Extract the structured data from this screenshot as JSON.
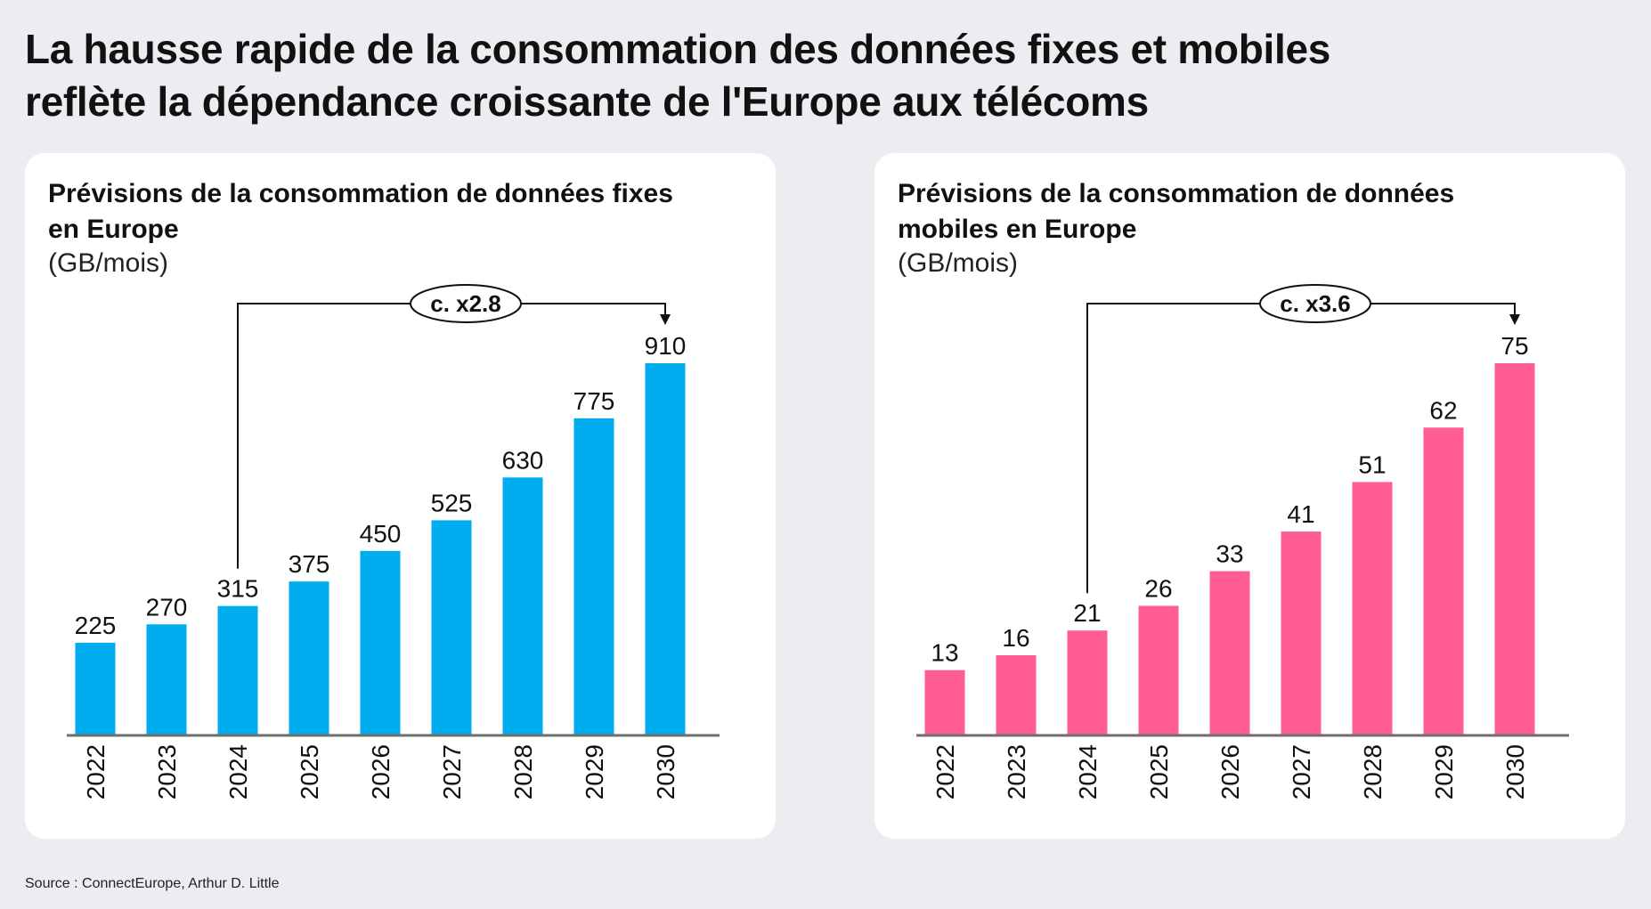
{
  "title": {
    "line1": "La hausse rapide de la consommation des données fixes et mobiles",
    "line2": "reflète la dépendance croissante de l'Europe aux télécoms"
  },
  "source": "Source : ConnectEurope, Arthur D. Little",
  "chart_data": [
    {
      "type": "bar",
      "title_line1": "Prévisions de la consommation de données fixes",
      "title_line2": "en Europe",
      "unit": "(GB/mois)",
      "categories": [
        "2022",
        "2023",
        "2024",
        "2025",
        "2026",
        "2027",
        "2028",
        "2029",
        "2030"
      ],
      "values": [
        225,
        270,
        315,
        375,
        450,
        525,
        630,
        775,
        910
      ],
      "color": "#00aeef",
      "annotation": {
        "text": "c. x2.8",
        "from": "2024",
        "to": "2030"
      },
      "ylim": [
        0,
        910
      ],
      "grid": false
    },
    {
      "type": "bar",
      "title_line1": "Prévisions de la consommation de données",
      "title_line2": "mobiles en Europe",
      "unit": "(GB/mois)",
      "categories": [
        "2022",
        "2023",
        "2024",
        "2025",
        "2026",
        "2027",
        "2028",
        "2029",
        "2030"
      ],
      "values": [
        13,
        16,
        21,
        26,
        33,
        41,
        51,
        62,
        75
      ],
      "color": "#ff5c93",
      "annotation": {
        "text": "c. x3.6",
        "from": "2024",
        "to": "2030"
      },
      "ylim": [
        0,
        75
      ],
      "grid": false
    }
  ]
}
